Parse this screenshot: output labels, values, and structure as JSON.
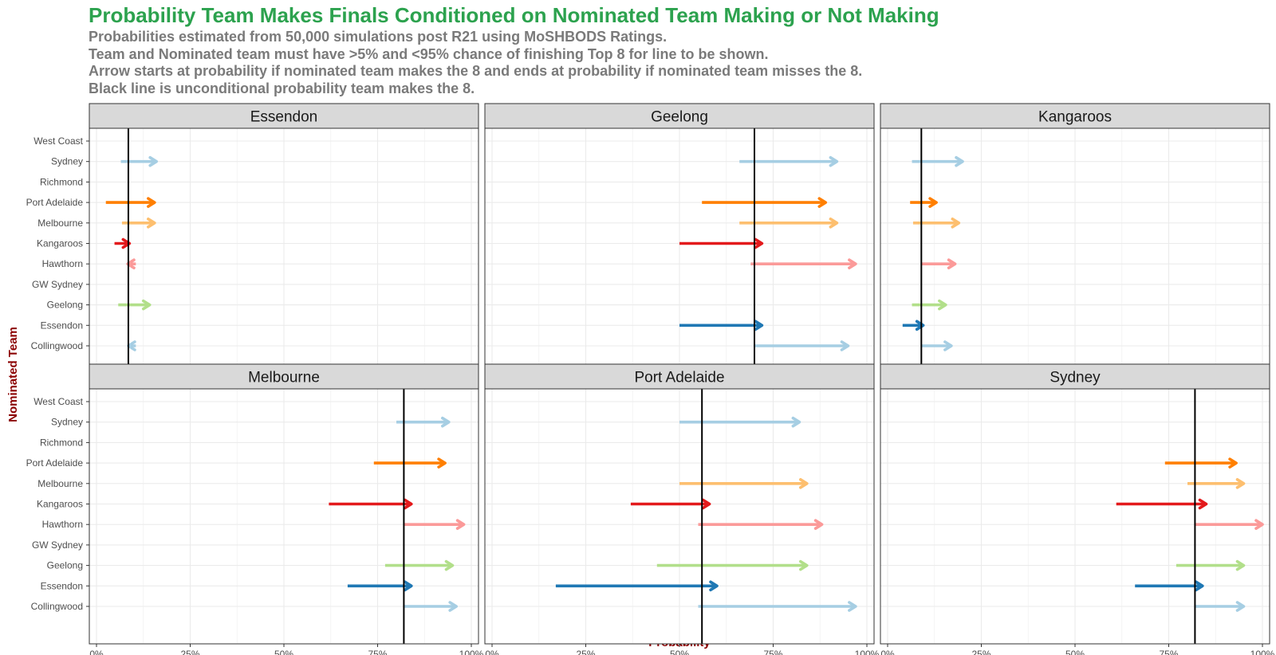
{
  "chart_data": {
    "type": "arrow-dot",
    "title": "Probability Team Makes Finals Conditioned on Nominated Team Making or Not Making",
    "subtitle_lines": [
      "Probabilities estimated from 50,000 simulations post R21 using MoSHBODS Ratings.",
      "Team and Nominated team must have >5% and <95% chance of finishing Top 8 for line to be shown.",
      "Arrow starts at probability if nominated team makes the 8 and ends at probability if nominated team misses the 8.",
      "Black line is unconditional probability team makes the 8."
    ],
    "xlabel": "Probability",
    "ylabel": "Nominated Team",
    "xlim": [
      0,
      1
    ],
    "x_ticks": [
      "0%",
      "25%",
      "50%",
      "75%",
      "100%"
    ],
    "grid": true,
    "categories": [
      "West Coast",
      "Sydney",
      "Richmond",
      "Port Adelaide",
      "Melbourne",
      "Kangaroos",
      "Hawthorn",
      "GW Sydney",
      "Geelong",
      "Essendon",
      "Collingwood"
    ],
    "team_colors": {
      "Collingwood": "#a6cee3",
      "Essendon": "#1f78b4",
      "Geelong": "#b2df8a",
      "Hawthorn": "#fb9a99",
      "Kangaroos": "#e31a1c",
      "Melbourne": "#fdbf6f",
      "Port Adelaide": "#ff7f00",
      "Sydney": "#a6cee3"
    },
    "facets": [
      {
        "team": "Essendon",
        "unconditional": 0.085,
        "arrows": [
          {
            "nominated": "Sydney",
            "start": 0.065,
            "end": 0.16
          },
          {
            "nominated": "Port Adelaide",
            "start": 0.025,
            "end": 0.155
          },
          {
            "nominated": "Melbourne",
            "start": 0.068,
            "end": 0.155
          },
          {
            "nominated": "Kangaroos",
            "start": 0.048,
            "end": 0.088
          },
          {
            "nominated": "Hawthorn",
            "start": 0.105,
            "end": 0.083
          },
          {
            "nominated": "Geelong",
            "start": 0.058,
            "end": 0.142
          },
          {
            "nominated": "Collingwood",
            "start": 0.105,
            "end": 0.085
          }
        ]
      },
      {
        "team": "Geelong",
        "unconditional": 0.7,
        "arrows": [
          {
            "nominated": "Sydney",
            "start": 0.66,
            "end": 0.92
          },
          {
            "nominated": "Port Adelaide",
            "start": 0.56,
            "end": 0.89
          },
          {
            "nominated": "Melbourne",
            "start": 0.66,
            "end": 0.92
          },
          {
            "nominated": "Kangaroos",
            "start": 0.5,
            "end": 0.72
          },
          {
            "nominated": "Hawthorn",
            "start": 0.69,
            "end": 0.97
          },
          {
            "nominated": "Essendon",
            "start": 0.5,
            "end": 0.72
          },
          {
            "nominated": "Collingwood",
            "start": 0.7,
            "end": 0.95
          }
        ]
      },
      {
        "team": "Kangaroos",
        "unconditional": 0.09,
        "arrows": [
          {
            "nominated": "Sydney",
            "start": 0.065,
            "end": 0.2
          },
          {
            "nominated": "Port Adelaide",
            "start": 0.06,
            "end": 0.13
          },
          {
            "nominated": "Melbourne",
            "start": 0.068,
            "end": 0.19
          },
          {
            "nominated": "Hawthorn",
            "start": 0.09,
            "end": 0.18
          },
          {
            "nominated": "Geelong",
            "start": 0.065,
            "end": 0.155
          },
          {
            "nominated": "Essendon",
            "start": 0.04,
            "end": 0.095
          },
          {
            "nominated": "Collingwood",
            "start": 0.09,
            "end": 0.17
          }
        ]
      },
      {
        "team": "Melbourne",
        "unconditional": 0.82,
        "arrows": [
          {
            "nominated": "Sydney",
            "start": 0.8,
            "end": 0.94
          },
          {
            "nominated": "Port Adelaide",
            "start": 0.74,
            "end": 0.93
          },
          {
            "nominated": "Kangaroos",
            "start": 0.62,
            "end": 0.84
          },
          {
            "nominated": "Hawthorn",
            "start": 0.82,
            "end": 0.98
          },
          {
            "nominated": "Geelong",
            "start": 0.77,
            "end": 0.95
          },
          {
            "nominated": "Essendon",
            "start": 0.67,
            "end": 0.84
          },
          {
            "nominated": "Collingwood",
            "start": 0.82,
            "end": 0.96
          }
        ]
      },
      {
        "team": "Port Adelaide",
        "unconditional": 0.56,
        "arrows": [
          {
            "nominated": "Sydney",
            "start": 0.5,
            "end": 0.82
          },
          {
            "nominated": "Melbourne",
            "start": 0.5,
            "end": 0.84
          },
          {
            "nominated": "Kangaroos",
            "start": 0.37,
            "end": 0.58
          },
          {
            "nominated": "Hawthorn",
            "start": 0.55,
            "end": 0.88
          },
          {
            "nominated": "Geelong",
            "start": 0.44,
            "end": 0.84
          },
          {
            "nominated": "Essendon",
            "start": 0.17,
            "end": 0.6
          },
          {
            "nominated": "Collingwood",
            "start": 0.55,
            "end": 0.97
          }
        ]
      },
      {
        "team": "Sydney",
        "unconditional": 0.82,
        "arrows": [
          {
            "nominated": "Port Adelaide",
            "start": 0.74,
            "end": 0.93
          },
          {
            "nominated": "Melbourne",
            "start": 0.8,
            "end": 0.95
          },
          {
            "nominated": "Kangaroos",
            "start": 0.61,
            "end": 0.85
          },
          {
            "nominated": "Hawthorn",
            "start": 0.82,
            "end": 1.0
          },
          {
            "nominated": "Geelong",
            "start": 0.77,
            "end": 0.95
          },
          {
            "nominated": "Essendon",
            "start": 0.66,
            "end": 0.84
          },
          {
            "nominated": "Collingwood",
            "start": 0.82,
            "end": 0.95
          }
        ]
      }
    ]
  }
}
